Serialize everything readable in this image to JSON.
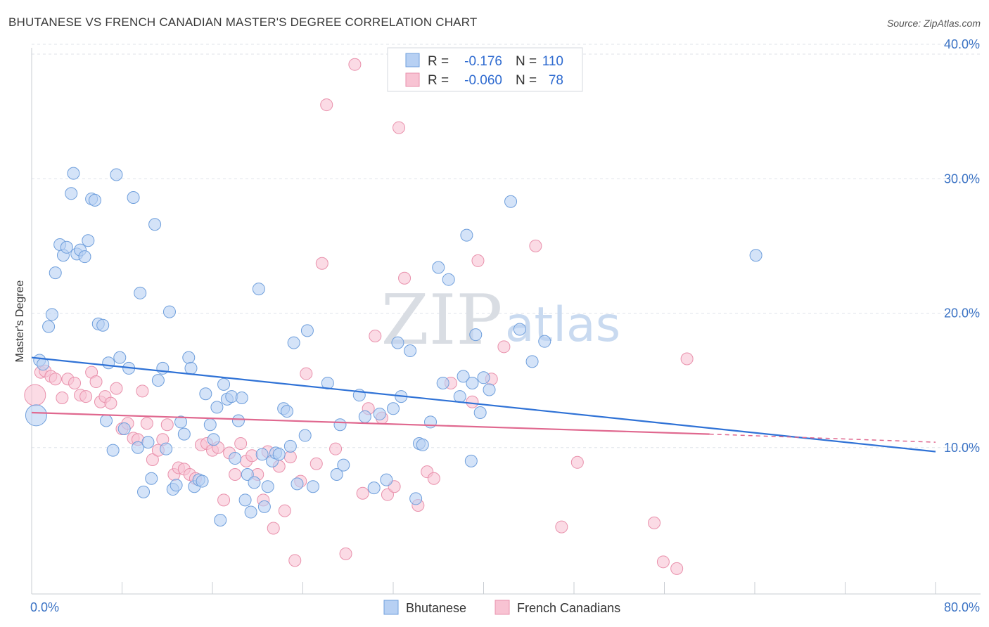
{
  "title": "BHUTANESE VS FRENCH CANADIAN MASTER'S DEGREE CORRELATION CHART",
  "source": "Source: ZipAtlas.com",
  "colors": {
    "blue_fill": "#b7d0f3",
    "blue_stroke": "#6f9fdc",
    "blue_line": "#2f72d6",
    "pink_fill": "#f8c3d3",
    "pink_stroke": "#e991ac",
    "pink_line": "#e0688f",
    "tick_text": "#3a72c4",
    "grid": "#dfe3ea"
  },
  "legend": {
    "rows": [
      {
        "r_label": "R =",
        "r_value": "-0.176",
        "n_label": "N =",
        "n_value": "110"
      },
      {
        "r_label": "R =",
        "r_value": "-0.060",
        "n_label": "N =",
        "n_value": "78"
      }
    ]
  },
  "watermark": {
    "zip": "ZIP",
    "atlas": "atlas"
  },
  "chart_data": {
    "type": "scatter",
    "title": "BHUTANESE VS FRENCH CANADIAN MASTER'S DEGREE CORRELATION CHART",
    "xlabel": "",
    "ylabel": "Master's Degree",
    "xlim": [
      0,
      80
    ],
    "ylim": [
      0,
      40
    ],
    "x_tick_labels": [
      "0.0%",
      "80.0%"
    ],
    "y_tick_labels": [
      "10.0%",
      "20.0%",
      "30.0%",
      "40.0%"
    ],
    "y_ticks": [
      10,
      20,
      30,
      40
    ],
    "grid": true,
    "legend_position": "top-center",
    "series": [
      {
        "name": "Bhutanese",
        "r": -0.176,
        "n": 110,
        "trend": {
          "x": [
            0,
            80
          ],
          "y": [
            16.7,
            9.7
          ]
        },
        "points": [
          {
            "x": 0.4,
            "y": 12.4,
            "big": true
          },
          {
            "x": 0.7,
            "y": 16.5
          },
          {
            "x": 1.0,
            "y": 16.2
          },
          {
            "x": 1.5,
            "y": 19.0
          },
          {
            "x": 1.8,
            "y": 19.9
          },
          {
            "x": 2.1,
            "y": 23.0
          },
          {
            "x": 2.5,
            "y": 25.1
          },
          {
            "x": 2.8,
            "y": 24.3
          },
          {
            "x": 3.1,
            "y": 24.9
          },
          {
            "x": 3.5,
            "y": 28.9
          },
          {
            "x": 3.7,
            "y": 30.4
          },
          {
            "x": 4.0,
            "y": 24.4
          },
          {
            "x": 4.3,
            "y": 24.7
          },
          {
            "x": 4.7,
            "y": 24.2
          },
          {
            "x": 5.0,
            "y": 25.4
          },
          {
            "x": 5.3,
            "y": 28.5
          },
          {
            "x": 5.6,
            "y": 28.4
          },
          {
            "x": 5.9,
            "y": 19.2
          },
          {
            "x": 6.3,
            "y": 19.1
          },
          {
            "x": 6.6,
            "y": 12.0
          },
          {
            "x": 6.8,
            "y": 16.3
          },
          {
            "x": 7.2,
            "y": 9.8
          },
          {
            "x": 7.8,
            "y": 16.7
          },
          {
            "x": 8.2,
            "y": 11.4
          },
          {
            "x": 8.6,
            "y": 15.9
          },
          {
            "x": 9.0,
            "y": 28.6
          },
          {
            "x": 7.5,
            "y": 30.3
          },
          {
            "x": 9.4,
            "y": 10.0
          },
          {
            "x": 9.6,
            "y": 21.5
          },
          {
            "x": 9.9,
            "y": 6.7
          },
          {
            "x": 10.3,
            "y": 10.4
          },
          {
            "x": 10.6,
            "y": 7.7
          },
          {
            "x": 10.9,
            "y": 26.6
          },
          {
            "x": 11.2,
            "y": 15.0
          },
          {
            "x": 11.6,
            "y": 15.9
          },
          {
            "x": 11.9,
            "y": 9.9
          },
          {
            "x": 12.2,
            "y": 20.1
          },
          {
            "x": 12.5,
            "y": 6.9
          },
          {
            "x": 12.8,
            "y": 7.2
          },
          {
            "x": 13.2,
            "y": 11.9
          },
          {
            "x": 13.5,
            "y": 11.0
          },
          {
            "x": 13.9,
            "y": 16.7
          },
          {
            "x": 14.1,
            "y": 15.9
          },
          {
            "x": 14.4,
            "y": 7.1
          },
          {
            "x": 14.8,
            "y": 7.6
          },
          {
            "x": 15.1,
            "y": 7.5
          },
          {
            "x": 15.4,
            "y": 14.0
          },
          {
            "x": 15.8,
            "y": 11.7
          },
          {
            "x": 16.1,
            "y": 10.6
          },
          {
            "x": 16.4,
            "y": 13.0
          },
          {
            "x": 16.7,
            "y": 4.6
          },
          {
            "x": 17.0,
            "y": 14.7
          },
          {
            "x": 17.3,
            "y": 13.6
          },
          {
            "x": 17.7,
            "y": 13.8
          },
          {
            "x": 18.0,
            "y": 9.2
          },
          {
            "x": 18.3,
            "y": 12.0
          },
          {
            "x": 18.6,
            "y": 13.7
          },
          {
            "x": 18.9,
            "y": 6.1
          },
          {
            "x": 19.1,
            "y": 8.0
          },
          {
            "x": 19.4,
            "y": 5.2
          },
          {
            "x": 19.7,
            "y": 7.4
          },
          {
            "x": 20.1,
            "y": 21.8
          },
          {
            "x": 20.4,
            "y": 9.5
          },
          {
            "x": 20.6,
            "y": 5.6
          },
          {
            "x": 20.9,
            "y": 7.1
          },
          {
            "x": 21.3,
            "y": 9.0
          },
          {
            "x": 21.6,
            "y": 9.6
          },
          {
            "x": 21.9,
            "y": 9.5
          },
          {
            "x": 22.3,
            "y": 12.9
          },
          {
            "x": 22.6,
            "y": 12.7
          },
          {
            "x": 22.9,
            "y": 10.1
          },
          {
            "x": 23.2,
            "y": 17.8
          },
          {
            "x": 23.5,
            "y": 7.3
          },
          {
            "x": 24.2,
            "y": 10.9
          },
          {
            "x": 24.4,
            "y": 18.7
          },
          {
            "x": 24.9,
            "y": 7.1
          },
          {
            "x": 26.2,
            "y": 14.8
          },
          {
            "x": 27.0,
            "y": 8.0
          },
          {
            "x": 27.3,
            "y": 11.7
          },
          {
            "x": 27.6,
            "y": 8.7
          },
          {
            "x": 29.0,
            "y": 13.9
          },
          {
            "x": 29.5,
            "y": 12.3
          },
          {
            "x": 30.3,
            "y": 7.0
          },
          {
            "x": 30.8,
            "y": 12.5
          },
          {
            "x": 31.4,
            "y": 7.6
          },
          {
            "x": 32.0,
            "y": 12.9
          },
          {
            "x": 32.4,
            "y": 17.8
          },
          {
            "x": 32.7,
            "y": 13.8
          },
          {
            "x": 33.5,
            "y": 17.2
          },
          {
            "x": 34.0,
            "y": 6.2
          },
          {
            "x": 34.3,
            "y": 10.3
          },
          {
            "x": 34.6,
            "y": 10.2
          },
          {
            "x": 35.3,
            "y": 11.9
          },
          {
            "x": 36.0,
            "y": 23.4
          },
          {
            "x": 36.4,
            "y": 14.8
          },
          {
            "x": 36.9,
            "y": 22.5
          },
          {
            "x": 37.9,
            "y": 13.8
          },
          {
            "x": 38.2,
            "y": 15.3
          },
          {
            "x": 38.5,
            "y": 25.8
          },
          {
            "x": 38.9,
            "y": 9.0
          },
          {
            "x": 39.3,
            "y": 18.4
          },
          {
            "x": 39.0,
            "y": 14.8
          },
          {
            "x": 39.7,
            "y": 12.6
          },
          {
            "x": 40.0,
            "y": 15.2
          },
          {
            "x": 40.5,
            "y": 14.3
          },
          {
            "x": 42.4,
            "y": 28.3
          },
          {
            "x": 43.2,
            "y": 18.8
          },
          {
            "x": 44.3,
            "y": 16.4
          },
          {
            "x": 45.4,
            "y": 17.9
          },
          {
            "x": 64.1,
            "y": 24.3
          }
        ]
      },
      {
        "name": "French Canadians",
        "r": -0.06,
        "n": 78,
        "trend": {
          "x": [
            0,
            60
          ],
          "y": [
            12.6,
            11.0
          ]
        },
        "trend_dashed": {
          "x": [
            60,
            80
          ],
          "y": [
            11.0,
            10.4
          ]
        },
        "points": [
          {
            "x": 0.3,
            "y": 13.9,
            "big": true
          },
          {
            "x": 0.8,
            "y": 15.6
          },
          {
            "x": 1.2,
            "y": 15.7
          },
          {
            "x": 1.7,
            "y": 15.3
          },
          {
            "x": 2.1,
            "y": 15.1
          },
          {
            "x": 2.7,
            "y": 13.7
          },
          {
            "x": 3.2,
            "y": 15.1
          },
          {
            "x": 3.8,
            "y": 14.8
          },
          {
            "x": 4.3,
            "y": 13.9
          },
          {
            "x": 4.8,
            "y": 13.8
          },
          {
            "x": 5.3,
            "y": 15.6
          },
          {
            "x": 5.7,
            "y": 14.9
          },
          {
            "x": 6.1,
            "y": 13.4
          },
          {
            "x": 6.5,
            "y": 13.8
          },
          {
            "x": 7.0,
            "y": 13.3
          },
          {
            "x": 7.5,
            "y": 14.4
          },
          {
            "x": 8.0,
            "y": 11.4
          },
          {
            "x": 8.5,
            "y": 11.8
          },
          {
            "x": 9.0,
            "y": 10.7
          },
          {
            "x": 9.4,
            "y": 10.6
          },
          {
            "x": 9.8,
            "y": 14.2
          },
          {
            "x": 10.2,
            "y": 11.8
          },
          {
            "x": 10.7,
            "y": 9.1
          },
          {
            "x": 11.2,
            "y": 9.8
          },
          {
            "x": 11.6,
            "y": 10.6
          },
          {
            "x": 12.0,
            "y": 11.7
          },
          {
            "x": 12.6,
            "y": 8.0
          },
          {
            "x": 13.0,
            "y": 8.5
          },
          {
            "x": 13.5,
            "y": 8.4
          },
          {
            "x": 14.0,
            "y": 8.0
          },
          {
            "x": 14.5,
            "y": 7.7
          },
          {
            "x": 15.0,
            "y": 10.2
          },
          {
            "x": 15.5,
            "y": 10.3
          },
          {
            "x": 16.0,
            "y": 9.8
          },
          {
            "x": 16.5,
            "y": 10.0
          },
          {
            "x": 17.0,
            "y": 6.1
          },
          {
            "x": 17.5,
            "y": 9.6
          },
          {
            "x": 18.0,
            "y": 8.0
          },
          {
            "x": 18.5,
            "y": 10.3
          },
          {
            "x": 19.0,
            "y": 9.0
          },
          {
            "x": 19.5,
            "y": 9.4
          },
          {
            "x": 20.0,
            "y": 8.0
          },
          {
            "x": 20.5,
            "y": 6.1
          },
          {
            "x": 20.9,
            "y": 9.7
          },
          {
            "x": 21.4,
            "y": 4.0
          },
          {
            "x": 21.9,
            "y": 8.6
          },
          {
            "x": 22.4,
            "y": 5.3
          },
          {
            "x": 22.9,
            "y": 9.3
          },
          {
            "x": 23.3,
            "y": 1.6
          },
          {
            "x": 23.8,
            "y": 7.5
          },
          {
            "x": 24.3,
            "y": 15.5
          },
          {
            "x": 25.2,
            "y": 8.8
          },
          {
            "x": 25.7,
            "y": 23.7
          },
          {
            "x": 26.1,
            "y": 35.5
          },
          {
            "x": 26.9,
            "y": 9.9
          },
          {
            "x": 27.8,
            "y": 2.1
          },
          {
            "x": 28.6,
            "y": 38.5
          },
          {
            "x": 29.3,
            "y": 6.6
          },
          {
            "x": 29.8,
            "y": 12.9
          },
          {
            "x": 30.4,
            "y": 18.3
          },
          {
            "x": 31.0,
            "y": 12.2
          },
          {
            "x": 31.5,
            "y": 6.5
          },
          {
            "x": 32.1,
            "y": 7.1
          },
          {
            "x": 32.5,
            "y": 33.8
          },
          {
            "x": 33.0,
            "y": 22.6
          },
          {
            "x": 34.2,
            "y": 5.7
          },
          {
            "x": 35.0,
            "y": 8.2
          },
          {
            "x": 35.6,
            "y": 7.7
          },
          {
            "x": 37.1,
            "y": 14.8
          },
          {
            "x": 39.0,
            "y": 13.4
          },
          {
            "x": 39.5,
            "y": 23.9
          },
          {
            "x": 40.7,
            "y": 15.1
          },
          {
            "x": 41.8,
            "y": 17.5
          },
          {
            "x": 44.6,
            "y": 25.0
          },
          {
            "x": 46.9,
            "y": 4.1
          },
          {
            "x": 48.3,
            "y": 8.9
          },
          {
            "x": 55.1,
            "y": 4.4
          },
          {
            "x": 55.9,
            "y": 1.5
          },
          {
            "x": 57.1,
            "y": 1.0
          },
          {
            "x": 58.0,
            "y": 16.6
          }
        ]
      }
    ]
  },
  "bottom_legend": [
    {
      "name": "Bhutanese"
    },
    {
      "name": "French Canadians"
    }
  ]
}
